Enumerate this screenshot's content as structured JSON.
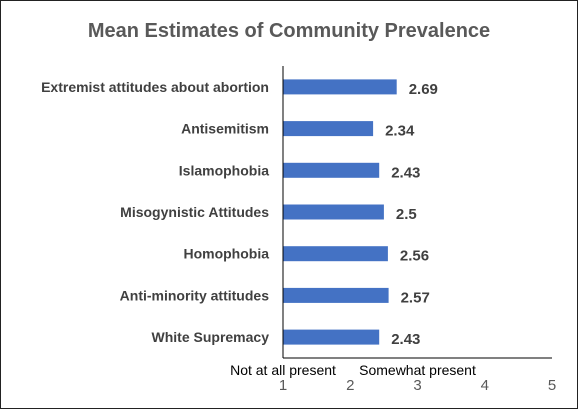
{
  "chart_data": {
    "type": "bar",
    "orientation": "horizontal",
    "title": "Mean Estimates of Community Prevalence",
    "categories": [
      "Extremist attitudes about abortion",
      "Antisemitism",
      "Islamophobia",
      "Misogynistic Attitudes",
      "Homophobia",
      "Anti-minority attitudes",
      "White Supremacy"
    ],
    "values": [
      2.69,
      2.34,
      2.43,
      2.5,
      2.56,
      2.57,
      2.43
    ],
    "value_labels": [
      "2.69",
      "2.34",
      "2.43",
      "2.5",
      "2.56",
      "2.57",
      "2.43"
    ],
    "x_ticks": [
      "1",
      "2",
      "3",
      "4",
      "5"
    ],
    "xlim": [
      1,
      5
    ],
    "xlabel": "",
    "ylabel": "",
    "annotations": [
      {
        "text": "Not at all present",
        "at": 1
      },
      {
        "text": "Somewhat present",
        "at": 3
      }
    ],
    "grid": false,
    "legend": "none",
    "bar_color": "#4472C4"
  }
}
